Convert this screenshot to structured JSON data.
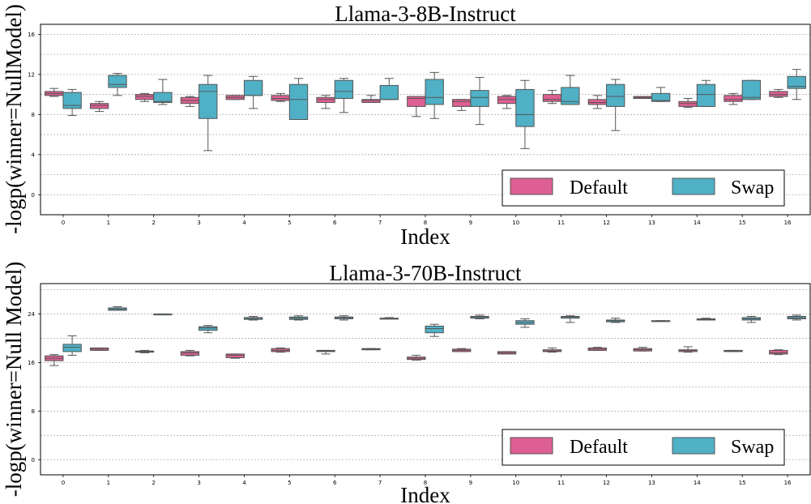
{
  "colors": {
    "default": "#de5f93",
    "swap": "#4fb0c6",
    "edge": "#555555",
    "grid": "#b0b0b0"
  },
  "legend": {
    "default_label": "Default",
    "swap_label": "Swap",
    "placement": "lower-right"
  },
  "chart_data": [
    {
      "type": "box",
      "title": "Llama-3-8B-Instruct",
      "xlabel": "Index",
      "ylabel": "-logp(winner=NullModel)",
      "ylim": [
        -2,
        17
      ],
      "yticks": [
        0,
        4,
        8,
        12,
        16
      ],
      "grid": true,
      "categories": [
        "0",
        "1",
        "2",
        "3",
        "4",
        "5",
        "6",
        "7",
        "8",
        "9",
        "10",
        "11",
        "12",
        "13",
        "14",
        "15",
        "16"
      ],
      "series": [
        {
          "name": "Default",
          "boxes": [
            {
              "whislo": 9.8,
              "q1": 9.9,
              "med": 10.1,
              "q3": 10.3,
              "whishi": 10.6
            },
            {
              "whislo": 8.3,
              "q1": 8.6,
              "med": 8.9,
              "q3": 9.1,
              "whishi": 9.3
            },
            {
              "whislo": 9.3,
              "q1": 9.5,
              "med": 9.8,
              "q3": 10.0,
              "whishi": 10.1
            },
            {
              "whislo": 8.8,
              "q1": 9.1,
              "med": 9.4,
              "q3": 9.7,
              "whishi": 9.8
            },
            {
              "whislo": 9.5,
              "q1": 9.5,
              "med": 9.7,
              "q3": 9.9,
              "whishi": 9.9
            },
            {
              "whislo": 9.3,
              "q1": 9.4,
              "med": 9.6,
              "q3": 9.9,
              "whishi": 10.1
            },
            {
              "whislo": 8.6,
              "q1": 9.2,
              "med": 9.5,
              "q3": 9.7,
              "whishi": 9.9
            },
            {
              "whislo": 9.2,
              "q1": 9.2,
              "med": 9.4,
              "q3": 9.5,
              "whishi": 9.9
            },
            {
              "whislo": 7.8,
              "q1": 8.8,
              "med": 9.6,
              "q3": 9.8,
              "whishi": 9.8
            },
            {
              "whislo": 8.4,
              "q1": 8.8,
              "med": 9.3,
              "q3": 9.5,
              "whishi": 9.5
            },
            {
              "whislo": 8.6,
              "q1": 9.1,
              "med": 9.5,
              "q3": 9.8,
              "whishi": 9.9
            },
            {
              "whislo": 9.1,
              "q1": 9.3,
              "med": 9.5,
              "q3": 10.0,
              "whishi": 10.4
            },
            {
              "whislo": 8.6,
              "q1": 9.0,
              "med": 9.2,
              "q3": 9.5,
              "whishi": 9.9
            },
            {
              "whislo": 9.6,
              "q1": 9.6,
              "med": 9.7,
              "q3": 9.8,
              "whishi": 9.8
            },
            {
              "whislo": 8.7,
              "q1": 8.8,
              "med": 9.1,
              "q3": 9.3,
              "whishi": 9.6
            },
            {
              "whislo": 9.0,
              "q1": 9.3,
              "med": 9.5,
              "q3": 9.9,
              "whishi": 10.1
            },
            {
              "whislo": 9.7,
              "q1": 9.8,
              "med": 10.0,
              "q3": 10.3,
              "whishi": 10.5
            }
          ]
        },
        {
          "name": "Swap",
          "boxes": [
            {
              "whislo": 7.9,
              "q1": 8.6,
              "med": 8.9,
              "q3": 10.2,
              "whishi": 10.5
            },
            {
              "whislo": 9.9,
              "q1": 10.7,
              "med": 11.0,
              "q3": 11.9,
              "whishi": 12.1
            },
            {
              "whislo": 9.0,
              "q1": 9.2,
              "med": 9.3,
              "q3": 10.2,
              "whishi": 11.5
            },
            {
              "whislo": 4.4,
              "q1": 7.6,
              "med": 10.3,
              "q3": 11.0,
              "whishi": 11.9
            },
            {
              "whislo": 8.6,
              "q1": 9.9,
              "med": 9.9,
              "q3": 11.4,
              "whishi": 11.8
            },
            {
              "whislo": 7.5,
              "q1": 7.5,
              "med": 9.5,
              "q3": 11.0,
              "whishi": 11.6
            },
            {
              "whislo": 8.2,
              "q1": 9.6,
              "med": 10.3,
              "q3": 11.4,
              "whishi": 11.6
            },
            {
              "whislo": 9.5,
              "q1": 9.5,
              "med": 9.5,
              "q3": 10.9,
              "whishi": 11.6
            },
            {
              "whislo": 7.6,
              "q1": 9.0,
              "med": 9.7,
              "q3": 11.5,
              "whishi": 12.2
            },
            {
              "whislo": 7.0,
              "q1": 8.8,
              "med": 9.7,
              "q3": 10.4,
              "whishi": 11.7
            },
            {
              "whislo": 4.6,
              "q1": 6.8,
              "med": 8.0,
              "q3": 10.5,
              "whishi": 11.4
            },
            {
              "whislo": 9.0,
              "q1": 9.0,
              "med": 9.3,
              "q3": 10.7,
              "whishi": 11.9
            },
            {
              "whislo": 6.4,
              "q1": 8.8,
              "med": 9.8,
              "q3": 11.0,
              "whishi": 11.5
            },
            {
              "whislo": 9.3,
              "q1": 9.3,
              "med": 9.4,
              "q3": 10.1,
              "whishi": 10.7
            },
            {
              "whislo": 8.8,
              "q1": 8.8,
              "med": 10.0,
              "q3": 11.0,
              "whishi": 11.4
            },
            {
              "whislo": 9.5,
              "q1": 9.5,
              "med": 9.7,
              "q3": 11.4,
              "whishi": 11.4
            },
            {
              "whislo": 9.5,
              "q1": 10.6,
              "med": 10.8,
              "q3": 11.8,
              "whishi": 12.5
            }
          ]
        }
      ]
    },
    {
      "type": "box",
      "title": "Llama-3-70B-Instruct",
      "xlabel": "Index",
      "ylabel": "-logp(winner=Null Model)",
      "ylim": [
        -2.5,
        29
      ],
      "yticks": [
        0,
        8,
        16,
        24
      ],
      "grid": true,
      "categories": [
        "0",
        "1",
        "2",
        "3",
        "4",
        "5",
        "6",
        "7",
        "8",
        "9",
        "10",
        "11",
        "12",
        "13",
        "14",
        "15",
        "16"
      ],
      "series": [
        {
          "name": "Default",
          "boxes": [
            {
              "whislo": 15.5,
              "q1": 16.3,
              "med": 16.7,
              "q3": 17.1,
              "whishi": 17.3
            },
            {
              "whislo": 18.0,
              "q1": 18.0,
              "med": 18.2,
              "q3": 18.4,
              "whishi": 18.4
            },
            {
              "whislo": 17.6,
              "q1": 17.7,
              "med": 17.8,
              "q3": 17.9,
              "whishi": 18.0
            },
            {
              "whislo": 17.1,
              "q1": 17.2,
              "med": 17.6,
              "q3": 17.8,
              "whishi": 18.0
            },
            {
              "whislo": 16.7,
              "q1": 16.8,
              "med": 17.2,
              "q3": 17.4,
              "whishi": 17.4
            },
            {
              "whislo": 17.7,
              "q1": 17.8,
              "med": 18.0,
              "q3": 18.3,
              "whishi": 18.4
            },
            {
              "whislo": 17.4,
              "q1": 17.8,
              "med": 17.9,
              "q3": 18.0,
              "whishi": 18.0
            },
            {
              "whislo": 18.1,
              "q1": 18.1,
              "med": 18.2,
              "q3": 18.3,
              "whishi": 18.3
            },
            {
              "whislo": 16.4,
              "q1": 16.5,
              "med": 16.7,
              "q3": 16.9,
              "whishi": 17.2
            },
            {
              "whislo": 17.8,
              "q1": 17.8,
              "med": 18.0,
              "q3": 18.2,
              "whishi": 18.3
            },
            {
              "whislo": 17.4,
              "q1": 17.4,
              "med": 17.6,
              "q3": 17.8,
              "whishi": 17.8
            },
            {
              "whislo": 17.7,
              "q1": 17.8,
              "med": 17.9,
              "q3": 18.1,
              "whishi": 18.4
            },
            {
              "whislo": 18.0,
              "q1": 18.0,
              "med": 18.2,
              "q3": 18.4,
              "whishi": 18.5
            },
            {
              "whislo": 17.9,
              "q1": 17.9,
              "med": 18.1,
              "q3": 18.3,
              "whishi": 18.5
            },
            {
              "whislo": 17.7,
              "q1": 17.8,
              "med": 18.0,
              "q3": 18.1,
              "whishi": 18.6
            },
            {
              "whislo": 17.8,
              "q1": 17.8,
              "med": 17.9,
              "q3": 18.0,
              "whishi": 18.0
            },
            {
              "whislo": 17.3,
              "q1": 17.4,
              "med": 17.6,
              "q3": 18.0,
              "whishi": 18.1
            }
          ]
        },
        {
          "name": "Swap",
          "boxes": [
            {
              "whislo": 17.2,
              "q1": 17.8,
              "med": 18.5,
              "q3": 19.0,
              "whishi": 20.4
            },
            {
              "whislo": 24.6,
              "q1": 24.6,
              "med": 24.8,
              "q3": 25.0,
              "whishi": 25.2
            },
            {
              "whislo": 24.0,
              "q1": 24.0,
              "med": 24.0,
              "q3": 24.0,
              "whishi": 24.0
            },
            {
              "whislo": 20.9,
              "q1": 21.3,
              "med": 21.7,
              "q3": 21.9,
              "whishi": 22.1
            },
            {
              "whislo": 23.0,
              "q1": 23.1,
              "med": 23.3,
              "q3": 23.4,
              "whishi": 23.6
            },
            {
              "whislo": 23.0,
              "q1": 23.1,
              "med": 23.3,
              "q3": 23.5,
              "whishi": 23.7
            },
            {
              "whislo": 23.0,
              "q1": 23.2,
              "med": 23.4,
              "q3": 23.5,
              "whishi": 23.7
            },
            {
              "whislo": 23.2,
              "q1": 23.2,
              "med": 23.3,
              "q3": 23.3,
              "whishi": 23.4
            },
            {
              "whislo": 20.3,
              "q1": 20.9,
              "med": 21.6,
              "q3": 22.0,
              "whishi": 22.3
            },
            {
              "whislo": 23.2,
              "q1": 23.3,
              "med": 23.5,
              "q3": 23.6,
              "whishi": 23.8
            },
            {
              "whislo": 21.8,
              "q1": 22.3,
              "med": 22.6,
              "q3": 22.9,
              "whishi": 23.2
            },
            {
              "whislo": 22.6,
              "q1": 23.3,
              "med": 23.5,
              "q3": 23.6,
              "whishi": 23.7
            },
            {
              "whislo": 22.6,
              "q1": 22.7,
              "med": 22.9,
              "q3": 23.0,
              "whishi": 23.3
            },
            {
              "whislo": 22.8,
              "q1": 22.8,
              "med": 22.8,
              "q3": 22.9,
              "whishi": 22.9
            },
            {
              "whislo": 23.0,
              "q1": 23.0,
              "med": 23.1,
              "q3": 23.2,
              "whishi": 23.3
            },
            {
              "whislo": 22.6,
              "q1": 23.0,
              "med": 23.2,
              "q3": 23.4,
              "whishi": 23.6
            },
            {
              "whislo": 23.0,
              "q1": 23.2,
              "med": 23.4,
              "q3": 23.6,
              "whishi": 23.8
            }
          ]
        }
      ]
    }
  ]
}
